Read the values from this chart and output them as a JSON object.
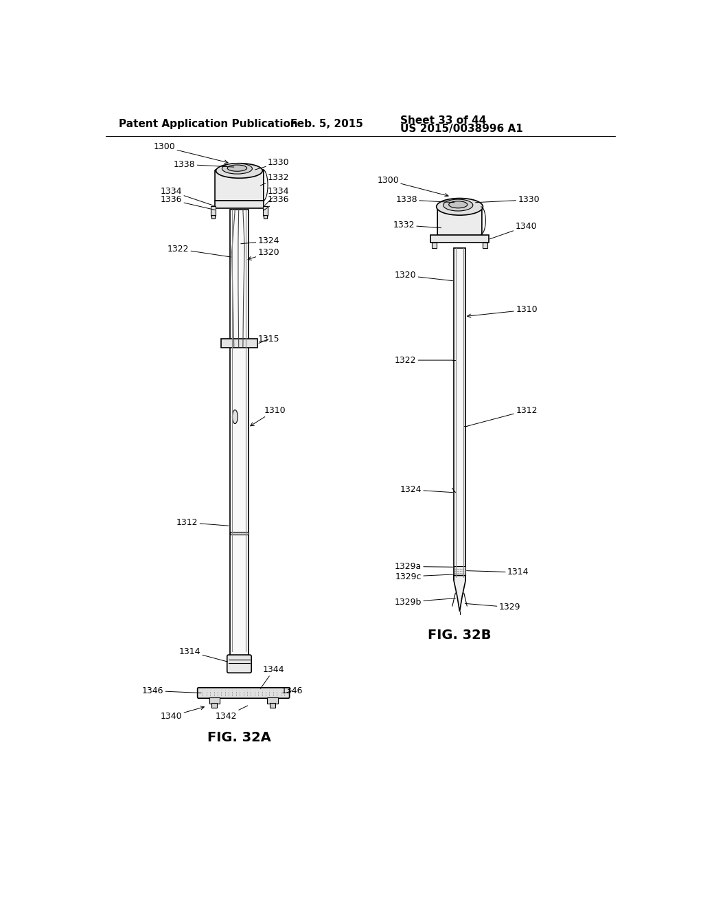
{
  "header_left": "Patent Application Publication",
  "header_mid": "Feb. 5, 2015",
  "header_right_sheet": "Sheet 33 of 44",
  "header_right_pub": "US 2015/0038996 A1",
  "fig_a_label": "FIG. 32A",
  "fig_b_label": "FIG. 32B",
  "background": "#ffffff",
  "line_color": "#000000",
  "font_size_header": 11,
  "font_size_label": 9,
  "font_size_fig": 14
}
